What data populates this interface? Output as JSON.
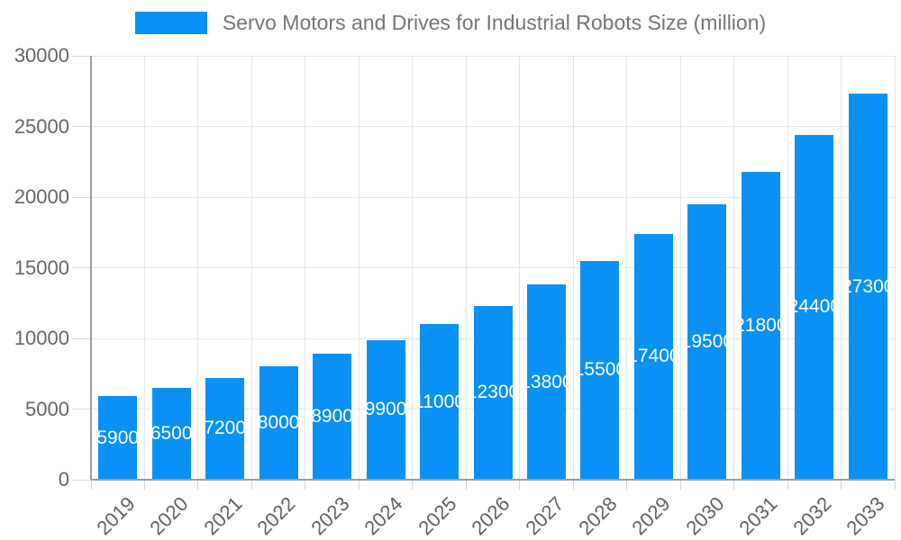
{
  "legend": {
    "label": "Servo Motors and Drives for Industrial Robots Size (million)",
    "swatch_color": "#0a91f5"
  },
  "chart_data": {
    "type": "bar",
    "title": "Servo Motors and Drives for Industrial Robots Size (million)",
    "categories": [
      "2019",
      "2020",
      "2021",
      "2022",
      "2023",
      "2024",
      "2025",
      "2026",
      "2027",
      "2028",
      "2029",
      "2030",
      "2031",
      "2032",
      "2033"
    ],
    "values": [
      5900,
      6500,
      7200,
      8000,
      8900,
      9900,
      11000,
      12300,
      13800,
      15500,
      17400,
      19500,
      21800,
      24400,
      27300
    ],
    "xlabel": "",
    "ylabel": "",
    "ylim": [
      0,
      30000
    ],
    "yticks": [
      0,
      5000,
      10000,
      15000,
      20000,
      25000,
      30000
    ],
    "grid": true,
    "legend_position": "top",
    "bar_color": "#0a91f5",
    "value_label_color": "#ffffff",
    "value_label_position": "inside-center"
  },
  "colors": {
    "background": "#ffffff",
    "bar": "#0a91f5",
    "gridline": "#e6e6e6",
    "axis_line": "#9e9e9e",
    "tick_mark": "#d2d2d2",
    "tick_text": "#666666",
    "x_tick_text": "#616161",
    "legend_text": "#757575",
    "bar_label_text": "#ffffff"
  }
}
